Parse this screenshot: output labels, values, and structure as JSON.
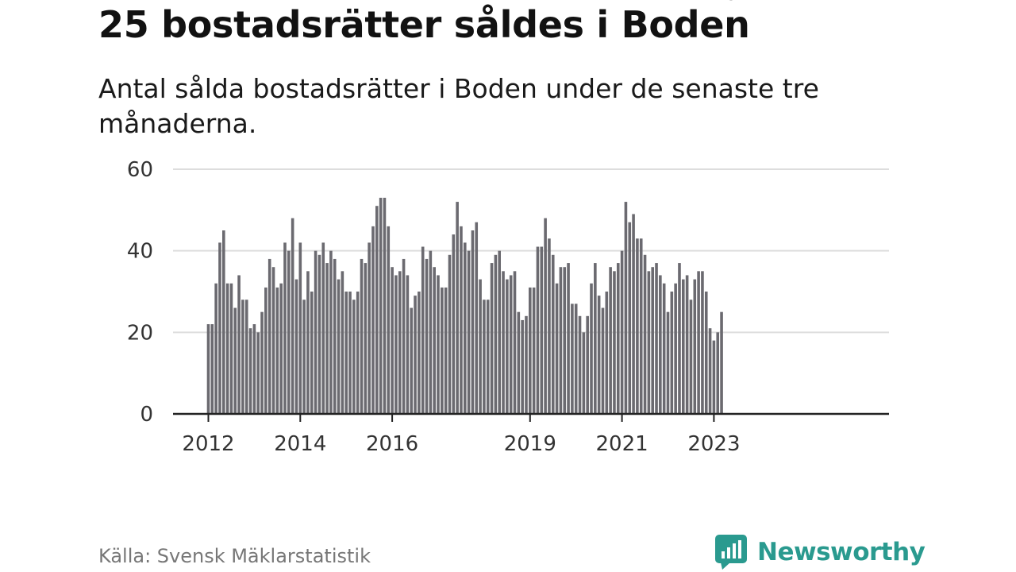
{
  "title": "25 bostadsrätter såldes i Boden",
  "subtitle": "Antal sålda bostadsrätter i Boden under de senaste tre månaderna.",
  "source": "Källa: Svensk Mäklarstatistik",
  "brand": {
    "name": "Newsworthy",
    "color": "#2a9a8f"
  },
  "colors": {
    "bar": "#6b6a70",
    "highlight": "#0f9a93",
    "grid": "#dddddd",
    "axis": "#222222"
  },
  "chart_data": {
    "type": "bar",
    "title": "25 bostadsrätter såldes i Boden",
    "xlabel": "",
    "ylabel": "",
    "ylim": [
      0,
      60
    ],
    "yticks": [
      "0",
      "20",
      "40",
      "60"
    ],
    "xticks": [
      {
        "label": "2012",
        "index": 0
      },
      {
        "label": "2014",
        "index": 24
      },
      {
        "label": "2016",
        "index": 48
      },
      {
        "label": "2019",
        "index": 84
      },
      {
        "label": "2021",
        "index": 108
      },
      {
        "label": "2023",
        "index": 132
      }
    ],
    "grid": true,
    "highlight": {
      "index": 135,
      "label": "25"
    },
    "values": [
      22,
      22,
      32,
      42,
      45,
      32,
      32,
      26,
      34,
      28,
      28,
      21,
      22,
      20,
      25,
      31,
      38,
      36,
      31,
      32,
      42,
      40,
      48,
      33,
      42,
      28,
      35,
      30,
      40,
      39,
      42,
      37,
      40,
      38,
      33,
      35,
      30,
      30,
      28,
      30,
      38,
      37,
      42,
      46,
      51,
      53,
      53,
      46,
      36,
      34,
      35,
      38,
      34,
      26,
      29,
      30,
      41,
      38,
      40,
      36,
      34,
      31,
      31,
      39,
      44,
      52,
      46,
      42,
      40,
      45,
      47,
      33,
      28,
      28,
      37,
      39,
      40,
      35,
      33,
      34,
      35,
      25,
      23,
      24,
      31,
      31,
      41,
      41,
      48,
      43,
      39,
      32,
      36,
      36,
      37,
      27,
      27,
      24,
      20,
      24,
      32,
      37,
      29,
      26,
      30,
      36,
      35,
      37,
      40,
      52,
      47,
      49,
      43,
      43,
      39,
      35,
      36,
      37,
      34,
      32,
      25,
      30,
      32,
      37,
      33,
      34,
      28,
      33,
      35,
      35,
      30,
      21,
      18,
      20,
      25
    ]
  }
}
